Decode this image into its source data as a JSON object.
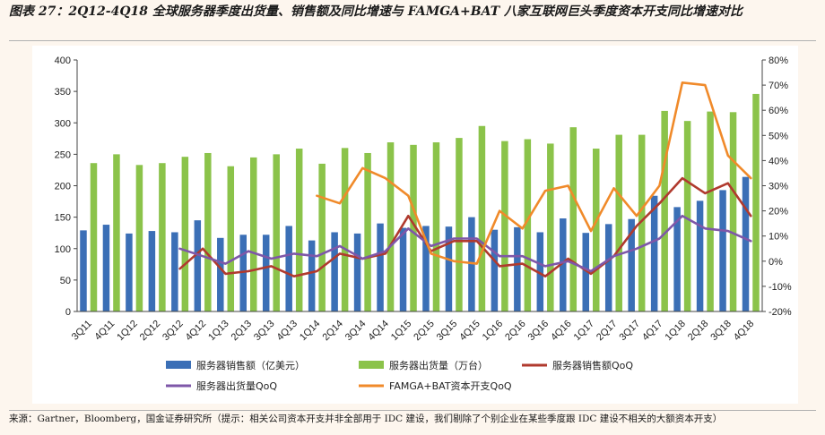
{
  "title": "图表 27：2Q12-4Q18 全球服务器季度出货量、销售额及同比增速与 FAMGA+BAT 八家互联网巨头季度资本开支同比增速对比",
  "source": "来源：Gartner，Bloomberg，国金证券研究所（提示：相关公司资本开支并非全部用于 IDC 建设，我们剔除了个别企业在某些季度跟 IDC 建设不相关的大额资本开支）",
  "chart_data": {
    "type": "bar",
    "categories": [
      "3Q11",
      "4Q11",
      "1Q12",
      "2Q12",
      "3Q12",
      "4Q12",
      "1Q13",
      "2Q13",
      "3Q13",
      "4Q13",
      "1Q14",
      "2Q14",
      "3Q14",
      "4Q14",
      "1Q15",
      "2Q15",
      "3Q15",
      "4Q15",
      "1Q16",
      "2Q16",
      "3Q16",
      "4Q16",
      "1Q17",
      "2Q17",
      "3Q17",
      "4Q17",
      "1Q18",
      "2Q18",
      "3Q18",
      "4Q18"
    ],
    "y_left": {
      "range": [
        0,
        400
      ],
      "ticks": [
        0,
        50,
        100,
        150,
        200,
        250,
        300,
        350,
        400
      ]
    },
    "y_right": {
      "range": [
        -20,
        80
      ],
      "ticks": [
        "-20%",
        "-10%",
        "0%",
        "10%",
        "20%",
        "30%",
        "40%",
        "50%",
        "60%",
        "70%",
        "80%"
      ]
    },
    "series": [
      {
        "name": "服务器销售额（亿美元）",
        "type": "bar",
        "axis": "left",
        "color": "#3b6fb6",
        "values": [
          129,
          138,
          124,
          128,
          126,
          145,
          117,
          122,
          122,
          136,
          113,
          126,
          124,
          140,
          133,
          136,
          135,
          150,
          130,
          134,
          126,
          148,
          125,
          139,
          147,
          184,
          166,
          176,
          193,
          214
        ]
      },
      {
        "name": "服务器出货量（万台）",
        "type": "bar",
        "axis": "left",
        "color": "#8bc34a",
        "values": [
          236,
          250,
          233,
          236,
          246,
          252,
          231,
          245,
          250,
          259,
          235,
          260,
          252,
          269,
          265,
          269,
          276,
          295,
          271,
          274,
          267,
          293,
          259,
          281,
          281,
          319,
          303,
          318,
          317,
          346
        ]
      },
      {
        "name": "服务器销售额QoQ",
        "type": "line",
        "axis": "right",
        "color": "#b03a2e",
        "values": [
          null,
          null,
          null,
          null,
          -3,
          5,
          -5,
          -4,
          -2,
          -6,
          -4,
          3,
          1,
          3,
          18,
          4,
          8,
          8,
          -2,
          -1,
          -6,
          1,
          -5,
          2,
          14,
          23,
          33,
          27,
          31,
          18
        ]
      },
      {
        "name": "服务器出货量QoQ",
        "type": "line",
        "axis": "right",
        "color": "#7e57a8",
        "values": [
          null,
          null,
          null,
          null,
          5,
          2,
          -1,
          4,
          1,
          3,
          2,
          6,
          1,
          4,
          13,
          6,
          9,
          9,
          2,
          2,
          -2,
          0,
          -4,
          2,
          5,
          9,
          18,
          13,
          12,
          8
        ]
      },
      {
        "name": "FAMGA+BAT资本开支QoQ",
        "type": "line",
        "axis": "right",
        "color": "#f08a2a",
        "values": [
          null,
          null,
          null,
          null,
          null,
          null,
          null,
          null,
          null,
          null,
          26,
          23,
          37,
          33,
          26,
          3,
          0,
          -1,
          20,
          13,
          28,
          30,
          12,
          29,
          18,
          30,
          71,
          70,
          42,
          33
        ]
      }
    ]
  }
}
